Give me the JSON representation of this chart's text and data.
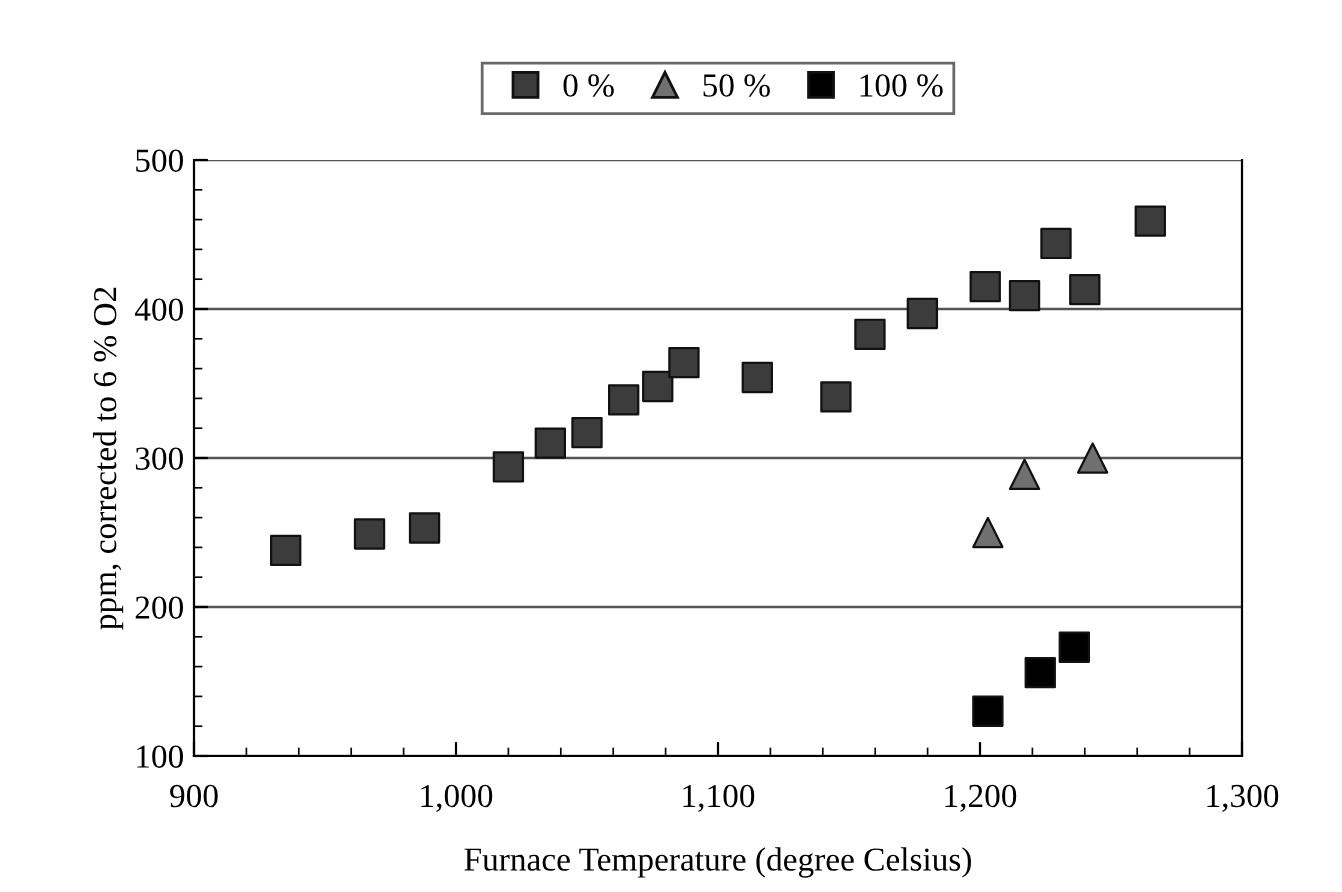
{
  "chart_data": {
    "type": "scatter",
    "xlabel": "Furnace Temperature (degree Celsius)",
    "ylabel": "ppm, corrected to 6 % O2",
    "series": [
      {
        "name": "0 %",
        "color": "#3c3c3c",
        "marker": "square",
        "x": [
          935,
          967,
          988,
          1020,
          1036,
          1050,
          1064,
          1077,
          1087,
          1115,
          1145,
          1158,
          1178,
          1202,
          1217,
          1229,
          1240,
          1265
        ],
        "values": [
          238,
          249,
          253,
          294,
          310,
          317,
          339,
          348,
          364,
          354,
          341,
          383,
          397,
          415,
          409,
          444,
          413,
          459
        ]
      },
      {
        "name": "50 %",
        "color": "#707070",
        "marker": "triangle",
        "x": [
          1203,
          1217,
          1243
        ],
        "values": [
          250,
          289,
          300
        ]
      },
      {
        "name": "100 %",
        "color": "#000000",
        "marker": "square",
        "x": [
          1203,
          1223,
          1236
        ],
        "values": [
          130,
          156,
          173
        ]
      }
    ],
    "xlim": [
      900,
      1300
    ],
    "ylim": [
      100,
      500
    ],
    "xticks": [
      900,
      {
        "value": 920,
        "label": null
      },
      {
        "value": 940,
        "label": null
      },
      {
        "value": 960,
        "label": null
      },
      {
        "value": 980,
        "label": null
      },
      {
        "value": 1000,
        "label": "1,000"
      },
      {
        "value": 1020,
        "label": null
      },
      {
        "value": 1040,
        "label": null
      },
      {
        "value": 1060,
        "label": null
      },
      {
        "value": 1080,
        "label": null
      },
      {
        "value": 1100,
        "label": "1,100"
      },
      {
        "value": 1120,
        "label": null
      },
      {
        "value": 1140,
        "label": null
      },
      {
        "value": 1160,
        "label": null
      },
      {
        "value": 1180,
        "label": null
      },
      {
        "value": 1200,
        "label": "1,200"
      },
      {
        "value": 1220,
        "label": null
      },
      {
        "value": 1240,
        "label": null
      },
      {
        "value": 1260,
        "label": null
      },
      {
        "value": 1280,
        "label": null
      },
      {
        "value": 1300,
        "label": "1,300"
      }
    ],
    "yticks": [
      100,
      {
        "value": 120,
        "label": null
      },
      {
        "value": 140,
        "label": null
      },
      {
        "value": 160,
        "label": null
      },
      {
        "value": 180,
        "label": null
      },
      200,
      {
        "value": 220,
        "label": null
      },
      {
        "value": 240,
        "label": null
      },
      {
        "value": 260,
        "label": null
      },
      {
        "value": 280,
        "label": null
      },
      300,
      {
        "value": 320,
        "label": null
      },
      {
        "value": 340,
        "label": null
      },
      {
        "value": 360,
        "label": null
      },
      {
        "value": 380,
        "label": null
      },
      400,
      {
        "value": 420,
        "label": null
      },
      {
        "value": 440,
        "label": null
      },
      {
        "value": 460,
        "label": null
      },
      {
        "value": 480,
        "label": null
      },
      500
    ],
    "grid": "y",
    "legend": "top"
  }
}
